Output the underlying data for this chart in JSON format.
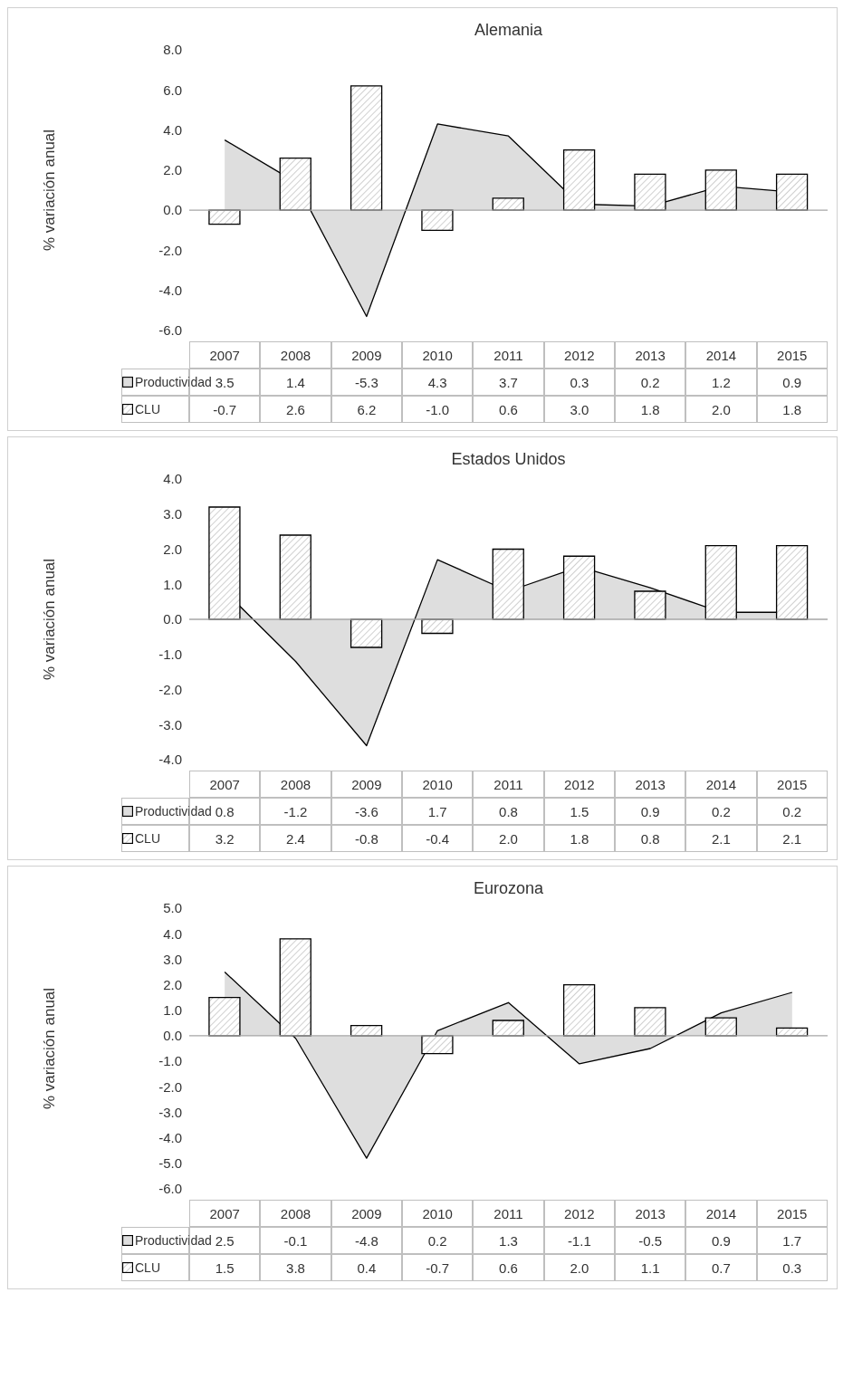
{
  "chart_data": [
    {
      "type": "bar",
      "title": "Alemania",
      "ylabel": "% variación anual",
      "categories": [
        "2007",
        "2008",
        "2009",
        "2010",
        "2011",
        "2012",
        "2013",
        "2014",
        "2015"
      ],
      "legend": "bottom",
      "ylim": [
        -6,
        8
      ],
      "yticks": [
        {
          "value": -6,
          "label": "-6.0"
        },
        {
          "value": -4,
          "label": "-4.0"
        },
        {
          "value": -2,
          "label": "-2.0"
        },
        {
          "value": 0,
          "label": "0.0"
        },
        {
          "value": 2,
          "label": "2.0"
        },
        {
          "value": 4,
          "label": "4.0"
        },
        {
          "value": 6,
          "label": "6.0"
        },
        {
          "value": 8,
          "label": "8.0"
        }
      ],
      "series": [
        {
          "name": "Productividad",
          "type": "area",
          "color": "#d0d0d0",
          "values": [
            3.5,
            1.4,
            -5.3,
            4.3,
            3.7,
            0.3,
            0.2,
            1.2,
            0.9
          ],
          "value_labels": [
            "3.5",
            "1.4",
            "-5.3",
            "4.3",
            "3.7",
            "0.3",
            "0.2",
            "1.2",
            "0.9"
          ]
        },
        {
          "name": "CLU",
          "color": "#000000",
          "values": [
            -0.7,
            2.6,
            6.2,
            -1.0,
            0.6,
            3.0,
            1.8,
            2.0,
            1.8
          ],
          "value_labels": [
            "-0.7",
            "2.6",
            "6.2",
            "-1.0",
            "0.6",
            "3.0",
            "1.8",
            "2.0",
            "1.8"
          ]
        }
      ]
    },
    {
      "type": "bar",
      "title": "Estados Unidos",
      "ylabel": "% variación anual",
      "categories": [
        "2007",
        "2008",
        "2009",
        "2010",
        "2011",
        "2012",
        "2013",
        "2014",
        "2015"
      ],
      "legend": "bottom",
      "ylim": [
        -4,
        4
      ],
      "yticks": [
        {
          "value": -4,
          "label": "-4.0"
        },
        {
          "value": -3,
          "label": "-3.0"
        },
        {
          "value": -2,
          "label": "-2.0"
        },
        {
          "value": -1,
          "label": "-1.0"
        },
        {
          "value": 0,
          "label": "0.0"
        },
        {
          "value": 1,
          "label": "1.0"
        },
        {
          "value": 2,
          "label": "2.0"
        },
        {
          "value": 3,
          "label": "3.0"
        },
        {
          "value": 4,
          "label": "4.0"
        }
      ],
      "series": [
        {
          "name": "Productividad",
          "type": "area",
          "color": "#d0d0d0",
          "values": [
            0.8,
            -1.2,
            -3.6,
            1.7,
            0.8,
            1.5,
            0.9,
            0.2,
            0.2
          ],
          "value_labels": [
            "0.8",
            "-1.2",
            "-3.6",
            "1.7",
            "0.8",
            "1.5",
            "0.9",
            "0.2",
            "0.2"
          ]
        },
        {
          "name": "CLU",
          "color": "#000000",
          "values": [
            3.2,
            2.4,
            -0.8,
            -0.4,
            2.0,
            1.8,
            0.8,
            2.1,
            2.1
          ],
          "value_labels": [
            "3.2",
            "2.4",
            "-0.8",
            "-0.4",
            "2.0",
            "1.8",
            "0.8",
            "2.1",
            "2.1"
          ]
        }
      ]
    },
    {
      "type": "bar",
      "title": "Eurozona",
      "ylabel": "% variación anual",
      "categories": [
        "2007",
        "2008",
        "2009",
        "2010",
        "2011",
        "2012",
        "2013",
        "2014",
        "2015"
      ],
      "legend": "bottom",
      "ylim": [
        -6,
        5
      ],
      "yticks": [
        {
          "value": -6,
          "label": "-6.0"
        },
        {
          "value": -5,
          "label": "-5.0"
        },
        {
          "value": -4,
          "label": "-4.0"
        },
        {
          "value": -3,
          "label": "-3.0"
        },
        {
          "value": -2,
          "label": "-2.0"
        },
        {
          "value": -1,
          "label": "-1.0"
        },
        {
          "value": 0,
          "label": "0.0"
        },
        {
          "value": 1,
          "label": "1.0"
        },
        {
          "value": 2,
          "label": "2.0"
        },
        {
          "value": 3,
          "label": "3.0"
        },
        {
          "value": 4,
          "label": "4.0"
        },
        {
          "value": 5,
          "label": "5.0"
        }
      ],
      "series": [
        {
          "name": "Productividad",
          "type": "area",
          "color": "#d0d0d0",
          "values": [
            2.5,
            -0.1,
            -4.8,
            0.2,
            1.3,
            -1.1,
            -0.5,
            0.9,
            1.7
          ],
          "value_labels": [
            "2.5",
            "-0.1",
            "-4.8",
            "0.2",
            "1.3",
            "-1.1",
            "-0.5",
            "0.9",
            "1.7"
          ]
        },
        {
          "name": "CLU",
          "color": "#000000",
          "values": [
            1.5,
            3.8,
            0.4,
            -0.7,
            0.6,
            2.0,
            1.1,
            0.7,
            0.3
          ],
          "value_labels": [
            "1.5",
            "3.8",
            "0.4",
            "-0.7",
            "0.6",
            "2.0",
            "1.1",
            "0.7",
            "0.3"
          ]
        }
      ]
    }
  ]
}
